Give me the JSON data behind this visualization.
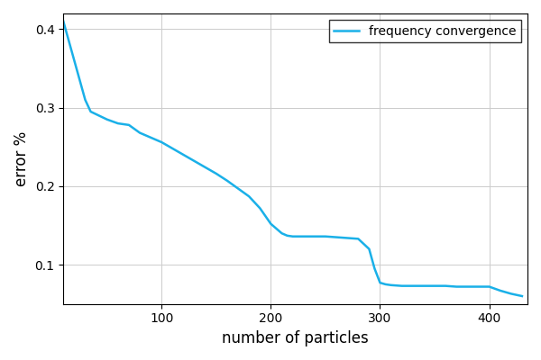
{
  "x": [
    10,
    20,
    30,
    35,
    50,
    60,
    70,
    80,
    90,
    100,
    110,
    120,
    130,
    140,
    150,
    160,
    170,
    180,
    190,
    200,
    210,
    215,
    220,
    230,
    240,
    250,
    260,
    270,
    280,
    290,
    295,
    300,
    305,
    310,
    320,
    330,
    340,
    350,
    360,
    370,
    380,
    390,
    400,
    410,
    420,
    430
  ],
  "y": [
    0.41,
    0.36,
    0.31,
    0.295,
    0.285,
    0.28,
    0.278,
    0.268,
    0.262,
    0.256,
    0.248,
    0.24,
    0.232,
    0.224,
    0.216,
    0.207,
    0.197,
    0.187,
    0.172,
    0.152,
    0.14,
    0.137,
    0.136,
    0.136,
    0.136,
    0.136,
    0.135,
    0.134,
    0.133,
    0.12,
    0.095,
    0.077,
    0.075,
    0.074,
    0.073,
    0.073,
    0.073,
    0.073,
    0.073,
    0.072,
    0.072,
    0.072,
    0.072,
    0.067,
    0.063,
    0.06
  ],
  "line_color": "#1ab0e8",
  "line_width": 1.8,
  "xlabel": "number of particles",
  "ylabel": "error %",
  "legend_label": "frequency convergence",
  "xlim": [
    10,
    435
  ],
  "ylim": [
    0.05,
    0.42
  ],
  "xticks": [
    100,
    200,
    300,
    400
  ],
  "yticks": [
    0.1,
    0.2,
    0.3,
    0.4
  ],
  "grid": true,
  "background_color": "#ffffff",
  "legend_loc": "upper right"
}
